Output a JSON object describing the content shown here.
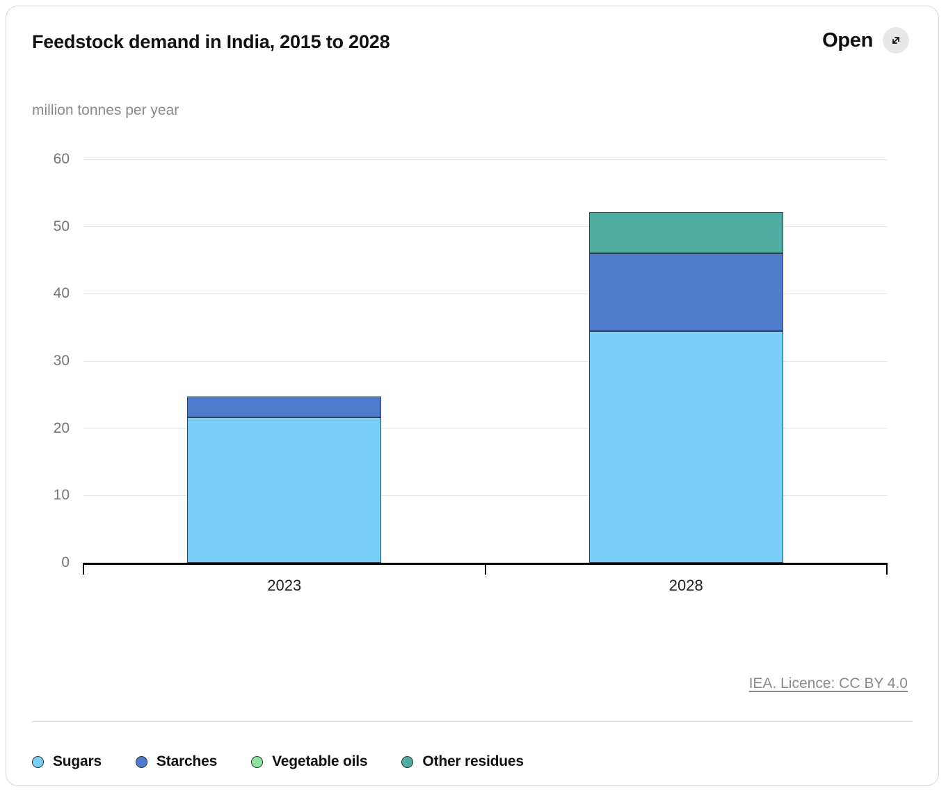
{
  "header": {
    "title": "Feedstock demand in India, 2015 to 2028",
    "open_label": "Open"
  },
  "chart_data": {
    "type": "bar",
    "stacked": true,
    "title": "Feedstock demand in India, 2015 to 2028",
    "unit": "million tonnes per year",
    "categories": [
      "2023",
      "2028"
    ],
    "series": [
      {
        "name": "Sugars",
        "color": "#79CFF8",
        "values": [
          21.6,
          34.4
        ]
      },
      {
        "name": "Starches",
        "color": "#4E7ACC",
        "values": [
          3.1,
          11.6
        ]
      },
      {
        "name": "Vegetable oils",
        "color": "#90E2A0",
        "values": [
          0,
          0
        ]
      },
      {
        "name": "Other residues",
        "color": "#50ABA0",
        "values": [
          0,
          6.1
        ]
      }
    ],
    "ylim": [
      0,
      60
    ],
    "yticks": [
      0,
      10,
      20,
      30,
      40,
      50,
      60
    ],
    "grid": true,
    "legend_position": "bottom",
    "bar_border_color": "#36404e"
  },
  "footer": {
    "license": "IEA. Licence: CC BY 4.0"
  }
}
